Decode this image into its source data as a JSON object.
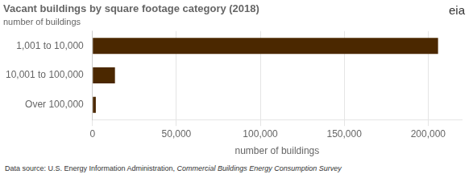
{
  "chart_data": {
    "type": "bar",
    "orientation": "horizontal",
    "title": "Vacant buildings by square footage category (2018)",
    "subtitle": "number of buildings",
    "categories": [
      "1,001 to 10,000",
      "10,001 to 100,000",
      "Over 100,000"
    ],
    "values": [
      205900,
      13400,
      2000
    ],
    "color": "#4b2800",
    "xlabel": "number of buildings",
    "xlim": [
      0,
      220000
    ],
    "xticks": [
      0,
      {
        "value": 50000,
        "label": "50,000"
      },
      {
        "value": 100000,
        "label": "100,000"
      },
      {
        "value": 150000,
        "label": "150,000"
      },
      {
        "value": 200000,
        "label": "200,000"
      }
    ],
    "grid": true,
    "footnote": [
      "Data source: U.S. Energy Information Administration, ",
      "Commercial Buildings Energy Consumption Survey"
    ],
    "annotations": [
      "eia"
    ]
  }
}
